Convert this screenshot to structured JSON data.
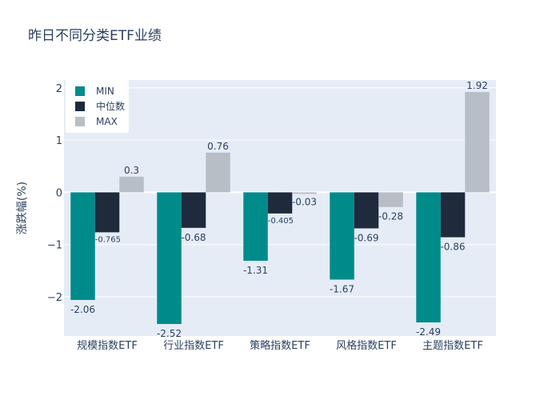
{
  "chart_data": {
    "type": "bar",
    "title": "昨日不同分类ETF业绩",
    "xlabel": "",
    "ylabel": "涨跌幅(%)",
    "categories": [
      "规模指数ETF",
      "行业指数ETF",
      "策略指数ETF",
      "风格指数ETF",
      "主题指数ETF"
    ],
    "series": [
      {
        "name": "MIN",
        "color": "#008b8b",
        "values": [
          -2.06,
          -2.52,
          -1.31,
          -1.67,
          -2.49
        ],
        "labels": [
          "-2.06",
          "-2.52",
          "-1.31",
          "-1.67",
          "-2.49"
        ]
      },
      {
        "name": "中位数",
        "color": "#1f2a3d",
        "values": [
          -0.765,
          -0.68,
          -0.405,
          -0.69,
          -0.86
        ],
        "labels": [
          "-0.765",
          "-0.68",
          "-0.405",
          "-0.69",
          "-0.86"
        ]
      },
      {
        "name": "MAX",
        "color": "#b8bec6",
        "values": [
          0.3,
          0.76,
          -0.03,
          -0.28,
          1.92
        ],
        "labels": [
          "0.3",
          "0.76",
          "-0.03",
          "-0.28",
          "1.92"
        ]
      }
    ],
    "ylim": [
      -2.75,
      2.15
    ],
    "yticks": [
      -2,
      -1,
      0,
      1,
      2
    ],
    "ytick_labels": [
      "−2",
      "−1",
      "0",
      "1",
      "2"
    ],
    "grid": true,
    "legend_position": "top-left",
    "plot_background": "#e5ecf6"
  }
}
